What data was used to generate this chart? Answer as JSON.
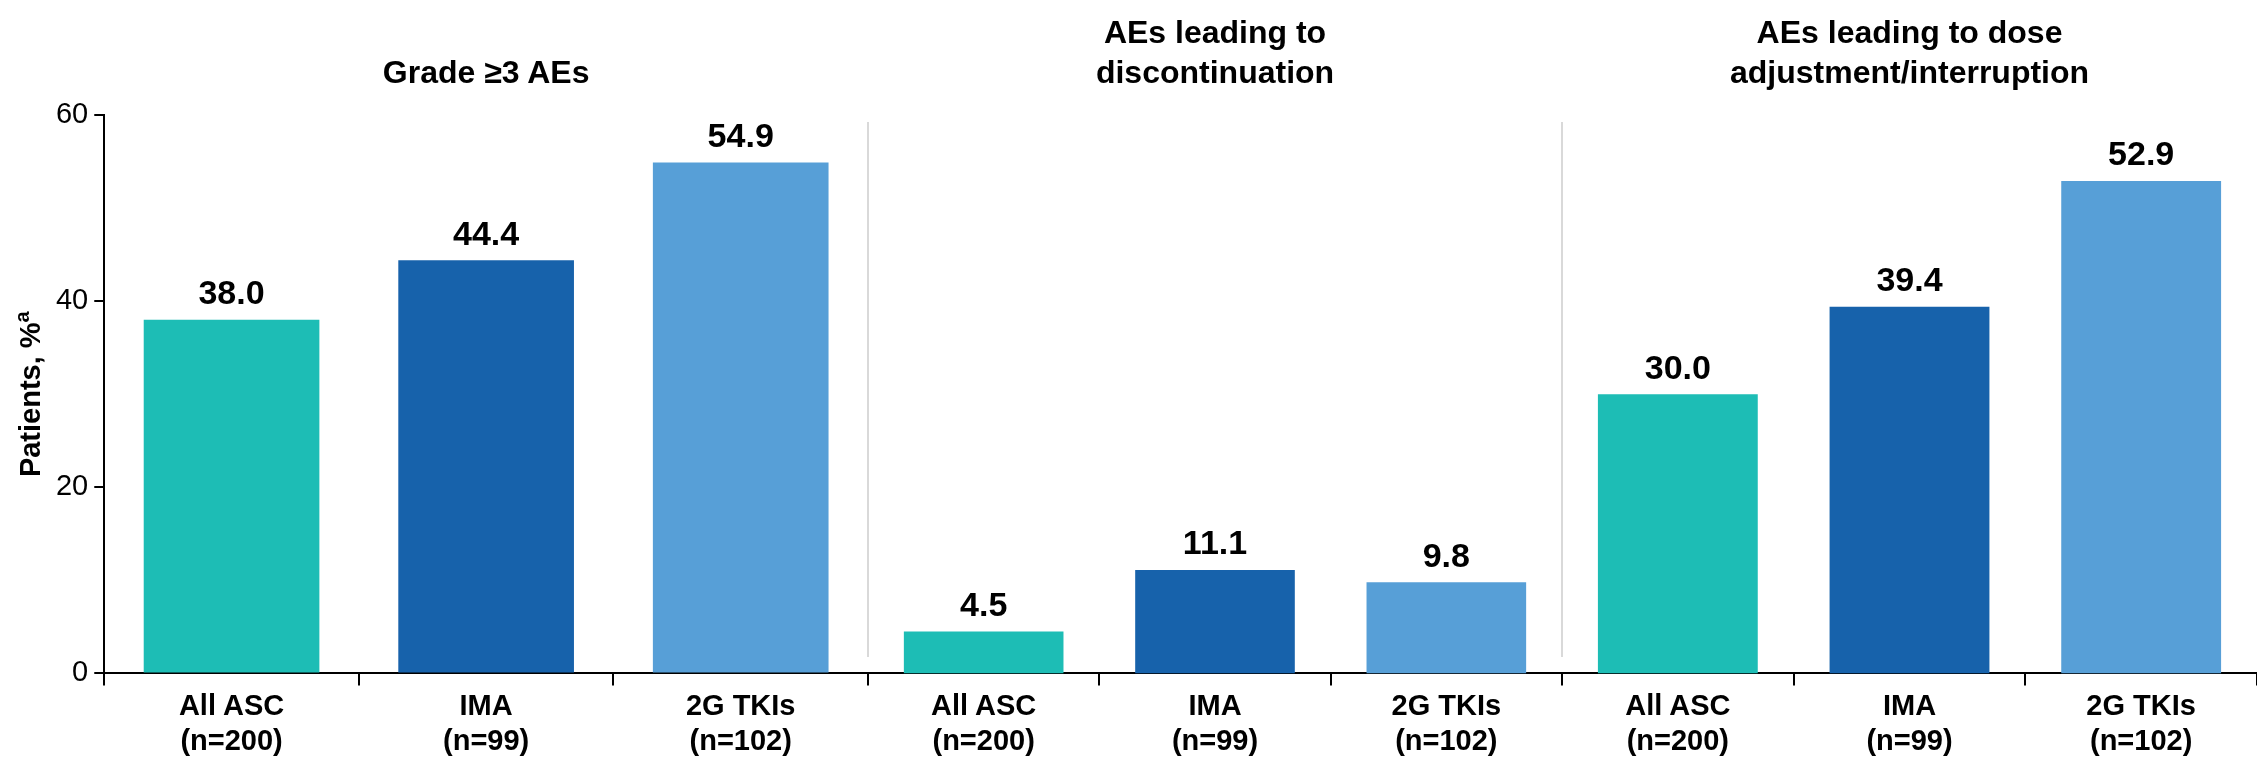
{
  "chart_data": [
    {
      "type": "bar",
      "title": "Grade ≥3 AEs",
      "ylabel": "Patients, %$^{a}$",
      "categories": [
        "All ASC\n(n=200)",
        "IMA\n(n=99)",
        "2G TKIs\n(n=102)"
      ],
      "values": [
        38.0,
        44.4,
        54.9
      ],
      "value_labels": [
        "38.0",
        "44.4",
        "54.9"
      ],
      "colors": [
        "#1dbdb5",
        "#1762ab",
        "#579fd7"
      ],
      "ylim": [
        0,
        60
      ],
      "yticks": [
        0,
        20,
        40,
        60
      ],
      "grid": false,
      "legend": false
    },
    {
      "type": "bar",
      "title": "AEs leading to\ndiscontinuation",
      "categories": [
        "All ASC\n(n=200)",
        "IMA\n(n=99)",
        "2G TKIs\n(n=102)"
      ],
      "values": [
        4.5,
        11.1,
        9.8
      ],
      "value_labels": [
        "4.5",
        "11.1",
        "9.8"
      ],
      "colors": [
        "#1dbdb5",
        "#1762ab",
        "#579fd7"
      ],
      "ylim": [
        0,
        60
      ],
      "tick_labels": "x",
      "grid": false,
      "legend": false
    },
    {
      "type": "bar",
      "title": "AEs leading to dose\nadjustment/interruption",
      "categories": [
        "All ASC\n(n=200)",
        "IMA\n(n=99)",
        "2G TKIs\n(n=102)"
      ],
      "values": [
        30.0,
        39.4,
        52.9
      ],
      "value_labels": [
        "30.0",
        "39.4",
        "52.9"
      ],
      "colors": [
        "#1dbdb5",
        "#1762ab",
        "#579fd7"
      ],
      "ylim": [
        0,
        60
      ],
      "tick_labels": "x",
      "grid": false,
      "legend": false
    }
  ]
}
